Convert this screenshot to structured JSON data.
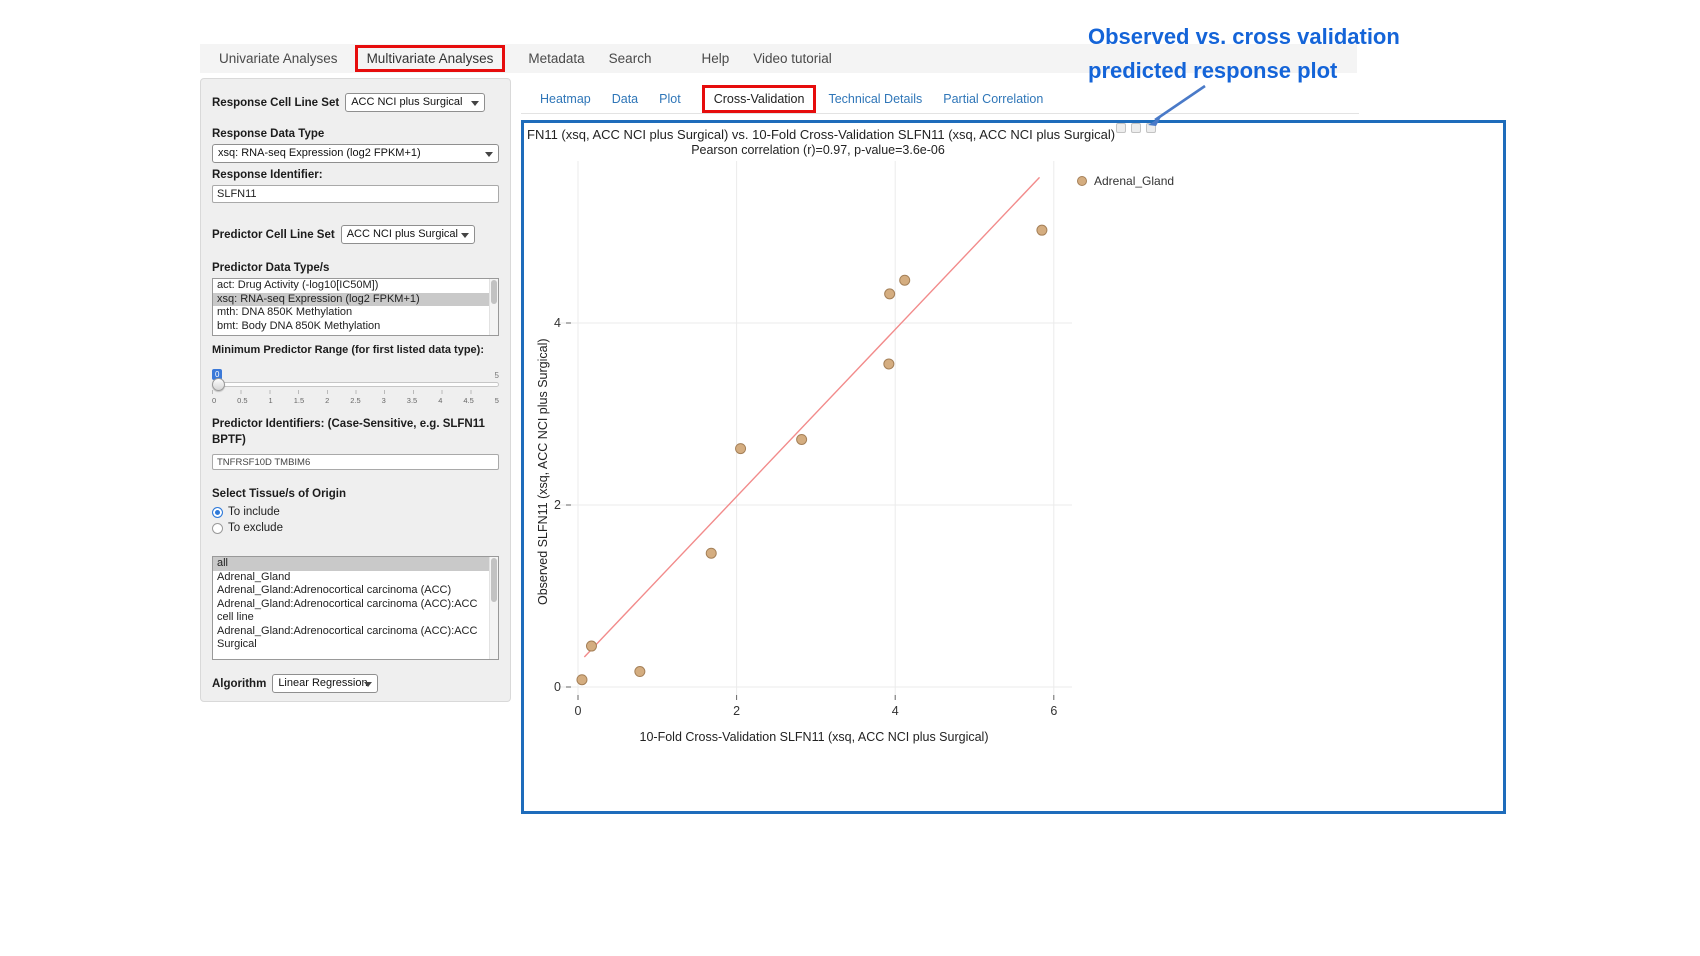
{
  "nav": {
    "items": [
      {
        "label": "Univariate Analyses",
        "active": false
      },
      {
        "label": "Multivariate Analyses",
        "active": true
      },
      {
        "label": "Metadata",
        "active": false
      },
      {
        "label": "Search",
        "active": false
      },
      {
        "label": "Help",
        "active": false
      },
      {
        "label": "Video tutorial",
        "active": false
      }
    ]
  },
  "sidebar": {
    "response_cell_line_set": {
      "label": "Response Cell Line Set",
      "value": "ACC NCI plus Surgical"
    },
    "response_data_type": {
      "label": "Response Data Type",
      "value": "xsq: RNA-seq Expression (log2 FPKM+1)"
    },
    "response_identifier": {
      "label": "Response Identifier:",
      "value": "SLFN11"
    },
    "predictor_cell_line_set": {
      "label": "Predictor Cell Line Set",
      "value": "ACC NCI plus Surgical"
    },
    "predictor_data_types": {
      "label": "Predictor Data Type/s",
      "options": [
        {
          "label": "act: Drug Activity (-log10[IC50M])",
          "selected": false
        },
        {
          "label": "xsq: RNA-seq Expression (log2 FPKM+1)",
          "selected": true
        },
        {
          "label": "mth: DNA 850K Methylation",
          "selected": false
        },
        {
          "label": "bmt: Body DNA 850K Methylation",
          "selected": false
        }
      ]
    },
    "min_predictor_range": {
      "label": "Minimum Predictor Range (for first listed data type):",
      "value": "0",
      "max_label": "5",
      "ticks": [
        "0",
        "0.5",
        "1",
        "1.5",
        "2",
        "2.5",
        "3",
        "3.5",
        "4",
        "4.5",
        "5"
      ]
    },
    "predictor_identifiers": {
      "label": "Predictor Identifiers: (Case-Sensitive, e.g. SLFN11 BPTF)",
      "value": "TNFRSF10D TMBIM6"
    },
    "tissue_origin": {
      "label": "Select Tissue/s of Origin",
      "radios": [
        {
          "label": "To include",
          "checked": true
        },
        {
          "label": "To exclude",
          "checked": false
        }
      ],
      "options": [
        {
          "label": "all",
          "selected": true
        },
        {
          "label": "Adrenal_Gland",
          "selected": false
        },
        {
          "label": "Adrenal_Gland:Adrenocortical carcinoma (ACC)",
          "selected": false
        },
        {
          "label": "Adrenal_Gland:Adrenocortical carcinoma (ACC):ACC cell line",
          "selected": false
        },
        {
          "label": "Adrenal_Gland:Adrenocortical carcinoma (ACC):ACC Surgical",
          "selected": false
        }
      ]
    },
    "algorithm": {
      "label": "Algorithm",
      "value": "Linear Regression"
    }
  },
  "subtabs": [
    {
      "label": "Heatmap",
      "active": false
    },
    {
      "label": "Data",
      "active": false
    },
    {
      "label": "Plot",
      "active": false
    },
    {
      "label": "Cross-Validation",
      "active": true
    },
    {
      "label": "Technical Details",
      "active": false
    },
    {
      "label": "Partial Correlation",
      "active": false
    }
  ],
  "annotation": {
    "line1": "Observed vs. cross validation",
    "line2": "predicted response plot",
    "color": "#1464d8",
    "arrow_color": "#4a7ac8"
  },
  "colors": {
    "highlight_box_red": "#e60c0c",
    "plot_border_blue": "#1e6cbb",
    "tab_link_blue": "#2f76b8"
  },
  "chart_data": {
    "type": "scatter",
    "title": "FN11 (xsq, ACC NCI plus Surgical) vs. 10-Fold Cross-Validation SLFN11 (xsq, ACC NCI plus Surgical)",
    "subtitle": "Pearson correlation (r)=0.97, p-value=3.6e-06",
    "xlabel": "10-Fold Cross-Validation SLFN11 (xsq, ACC NCI plus Surgical)",
    "ylabel": "Observed SLFN11 (xsq, ACC NCI plus Surgical)",
    "xlim": [
      -0.3,
      6.3
    ],
    "ylim": [
      -0.2,
      5.8
    ],
    "x_ticks": [
      0,
      2,
      4,
      6
    ],
    "y_ticks": [
      0,
      2,
      4
    ],
    "grid": true,
    "grid_color": "#ebebeb",
    "legend_position": "top-right",
    "legend": [
      {
        "label": "Adrenal_Gland"
      }
    ],
    "series": [
      {
        "name": "Adrenal_Gland",
        "marker_color": "#d4ad80",
        "marker_stroke": "#a58058",
        "points": [
          [
            0.05,
            0.08
          ],
          [
            0.17,
            0.45
          ],
          [
            0.78,
            0.17
          ],
          [
            1.68,
            1.47
          ],
          [
            2.05,
            2.62
          ],
          [
            2.82,
            2.72
          ],
          [
            3.92,
            3.55
          ],
          [
            3.93,
            4.32
          ],
          [
            4.12,
            4.47
          ],
          [
            5.85,
            5.02
          ]
        ]
      }
    ],
    "regression_line": {
      "x1": 0.08,
      "y1": 0.33,
      "x2": 5.82,
      "y2": 5.6,
      "color": "#f28b8b"
    }
  }
}
